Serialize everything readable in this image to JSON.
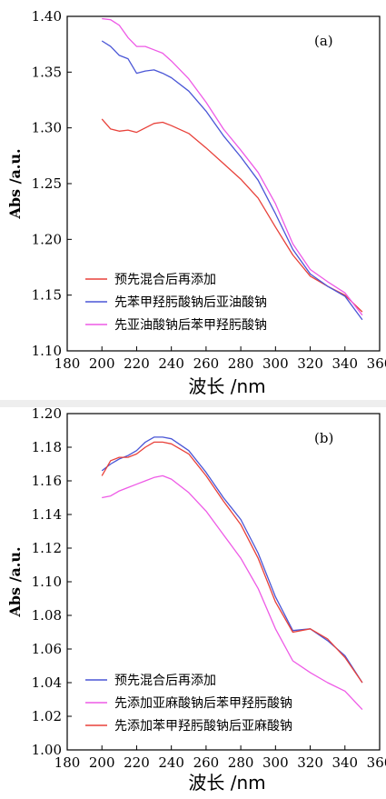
{
  "chart_data": [
    {
      "type": "line",
      "panel_label": "(a)",
      "xlabel": "波长 /nm",
      "ylabel": "Abs /a.u.",
      "xlim": [
        180,
        360
      ],
      "ylim": [
        1.1,
        1.4
      ],
      "xticks": [
        "180",
        "200",
        "220",
        "240",
        "260",
        "280",
        "300",
        "320",
        "340",
        "360"
      ],
      "yticks": [
        "1.10",
        "1.15",
        "1.20",
        "1.25",
        "1.30",
        "1.35",
        "1.40"
      ],
      "legend_position": "bottom-left",
      "series": [
        {
          "name": "预先混合后再添加",
          "color": "#e8413a",
          "x": [
            200,
            205,
            210,
            215,
            220,
            225,
            230,
            235,
            240,
            250,
            260,
            270,
            280,
            290,
            300,
            310,
            320,
            330,
            340,
            350
          ],
          "y": [
            1.308,
            1.299,
            1.297,
            1.298,
            1.296,
            1.3,
            1.304,
            1.305,
            1.302,
            1.295,
            1.282,
            1.268,
            1.254,
            1.237,
            1.211,
            1.186,
            1.167,
            1.158,
            1.15,
            1.135
          ]
        },
        {
          "name": "先苯甲羟肟酸钠后亚油酸钠",
          "color": "#4a56d6",
          "x": [
            200,
            205,
            210,
            215,
            220,
            225,
            230,
            235,
            240,
            250,
            260,
            270,
            280,
            290,
            300,
            310,
            320,
            330,
            340,
            350
          ],
          "y": [
            1.378,
            1.373,
            1.365,
            1.362,
            1.349,
            1.351,
            1.352,
            1.349,
            1.345,
            1.333,
            1.315,
            1.293,
            1.274,
            1.253,
            1.223,
            1.191,
            1.169,
            1.158,
            1.149,
            1.128
          ]
        },
        {
          "name": "先亚油酸钠后苯甲羟肟酸钠",
          "color": "#ee5ae6",
          "x": [
            200,
            205,
            210,
            215,
            220,
            225,
            230,
            235,
            240,
            250,
            260,
            270,
            280,
            290,
            300,
            310,
            320,
            330,
            340,
            350
          ],
          "y": [
            1.398,
            1.397,
            1.392,
            1.381,
            1.373,
            1.373,
            1.37,
            1.367,
            1.36,
            1.344,
            1.323,
            1.299,
            1.28,
            1.26,
            1.232,
            1.196,
            1.173,
            1.162,
            1.152,
            1.132
          ]
        }
      ]
    },
    {
      "type": "line",
      "panel_label": "(b)",
      "xlabel": "波长 /nm",
      "ylabel": "Abs /a.u.",
      "xlim": [
        180,
        360
      ],
      "ylim": [
        1.0,
        1.2
      ],
      "xticks": [
        "180",
        "200",
        "220",
        "240",
        "260",
        "280",
        "300",
        "320",
        "340",
        "360"
      ],
      "yticks": [
        "1.00",
        "1.02",
        "1.04",
        "1.06",
        "1.08",
        "1.10",
        "1.12",
        "1.14",
        "1.16",
        "1.18",
        "1.20"
      ],
      "legend_position": "bottom-left",
      "series": [
        {
          "name": "预先混合后再添加",
          "color": "#4a56d6",
          "x": [
            200,
            205,
            210,
            215,
            220,
            225,
            230,
            235,
            240,
            250,
            260,
            270,
            280,
            290,
            300,
            310,
            320,
            330,
            340,
            350
          ],
          "y": [
            1.166,
            1.17,
            1.173,
            1.175,
            1.178,
            1.183,
            1.186,
            1.186,
            1.185,
            1.178,
            1.165,
            1.15,
            1.137,
            1.117,
            1.091,
            1.071,
            1.072,
            1.065,
            1.056,
            1.04
          ]
        },
        {
          "name": "先添加亚麻酸钠后苯甲羟肟酸钠",
          "color": "#ee5ae6",
          "x": [
            200,
            205,
            210,
            215,
            220,
            225,
            230,
            235,
            240,
            250,
            260,
            270,
            280,
            290,
            300,
            310,
            320,
            330,
            340,
            350
          ],
          "y": [
            1.15,
            1.151,
            1.154,
            1.156,
            1.158,
            1.16,
            1.162,
            1.163,
            1.161,
            1.153,
            1.142,
            1.128,
            1.114,
            1.096,
            1.072,
            1.053,
            1.046,
            1.04,
            1.035,
            1.024
          ]
        },
        {
          "name": "先添加苯甲羟肟酸钠后亚麻酸钠",
          "color": "#e8413a",
          "x": [
            200,
            205,
            210,
            215,
            220,
            225,
            230,
            235,
            240,
            250,
            260,
            270,
            280,
            290,
            300,
            310,
            320,
            330,
            340,
            350
          ],
          "y": [
            1.163,
            1.172,
            1.174,
            1.174,
            1.176,
            1.18,
            1.183,
            1.183,
            1.182,
            1.176,
            1.163,
            1.148,
            1.134,
            1.114,
            1.088,
            1.07,
            1.072,
            1.066,
            1.055,
            1.04
          ]
        }
      ]
    }
  ]
}
